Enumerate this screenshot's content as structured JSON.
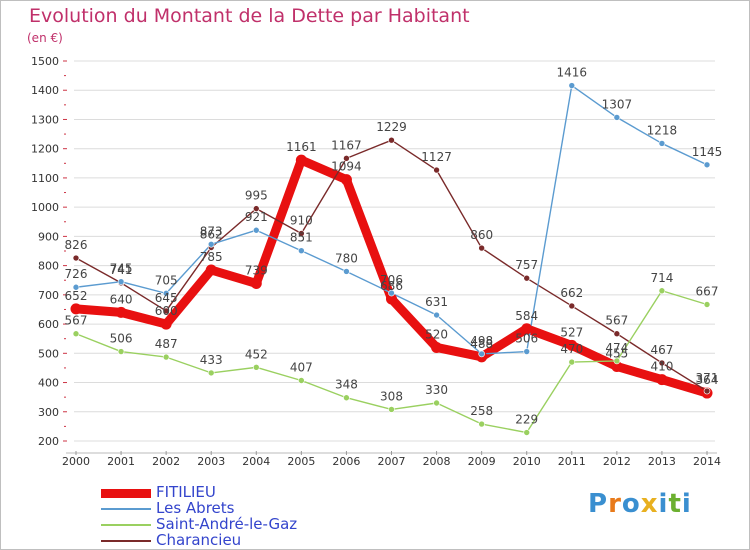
{
  "title": "Evolution du Montant de la Dette par Habitant",
  "unit_label": "(en €)",
  "logo_text": "Proxiti",
  "chart_data": {
    "type": "line",
    "title": "Evolution du Montant de la Dette par Habitant",
    "subtitle": "(en €)",
    "x": [
      "2000",
      "2001",
      "2002",
      "2003",
      "2004",
      "2005",
      "2006",
      "2007",
      "2008",
      "2009",
      "2010",
      "2011",
      "2012",
      "2013",
      "2014"
    ],
    "ylim": [
      200,
      1500
    ],
    "yticks": [
      200,
      300,
      400,
      500,
      600,
      700,
      800,
      900,
      1000,
      1100,
      1200,
      1300,
      1400,
      1500
    ],
    "grid": true,
    "legend_position": "bottom-left",
    "series": [
      {
        "name": "FITILIEU",
        "color": "#e81010",
        "values": [
          652,
          640,
          600,
          785,
          739,
          1161,
          1094,
          686,
          520,
          488,
          584,
          527,
          455,
          410,
          364
        ]
      },
      {
        "name": "Les Abrets",
        "color": "#5b9bd0",
        "values": [
          726,
          745,
          705,
          873,
          921,
          851,
          780,
          706,
          631,
          498,
          506,
          1416,
          1307,
          1218,
          1145
        ]
      },
      {
        "name": "Saint-André-le-Gaz",
        "color": "#9ad060",
        "values": [
          567,
          506,
          487,
          433,
          452,
          407,
          348,
          308,
          330,
          258,
          229,
          470,
          474,
          714,
          667
        ]
      },
      {
        "name": "Charancieu",
        "color": "#7a2a2a",
        "values": [
          826,
          741,
          645,
          862,
          995,
          910,
          1167,
          1229,
          1127,
          860,
          757,
          662,
          567,
          467,
          371
        ]
      }
    ],
    "value_labels": {
      "FITILIEU": [
        "652",
        "640",
        "600",
        "785",
        "739",
        "1161",
        "1094",
        "686",
        "520",
        "488",
        "584",
        "527",
        "455",
        "410",
        "364"
      ],
      "Les Abrets": [
        "726",
        "745",
        "705",
        "873",
        "921",
        "851",
        "780",
        "706",
        "631",
        "498",
        "506",
        "1416",
        "1307",
        "1218",
        "1145"
      ],
      "Saint-André-le-Gaz": [
        "567",
        "506",
        "487",
        "433",
        "452",
        "407",
        "348",
        "308",
        "330",
        "258",
        "229",
        "470",
        "474",
        "714",
        "667"
      ],
      "Charancieu": [
        "826",
        "741",
        "645",
        "862",
        "995",
        "910",
        "1167",
        "1229",
        "1127",
        "860",
        "757",
        "662",
        "567",
        "467",
        "371"
      ]
    }
  }
}
